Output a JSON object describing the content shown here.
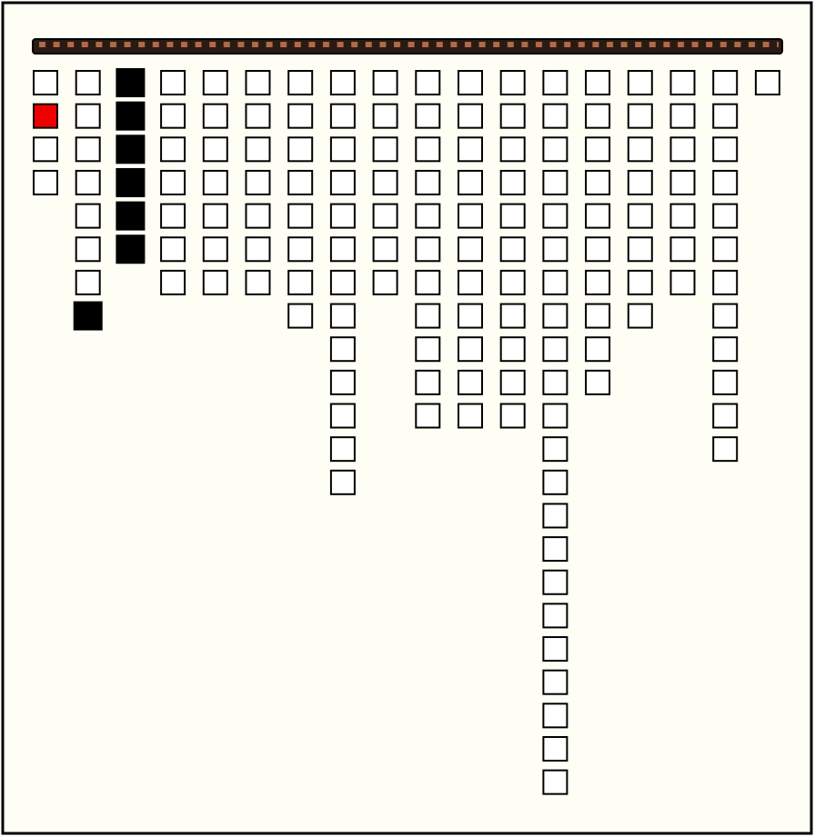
{
  "columns": [
    {
      "cells": [
        "empty",
        "red",
        "empty",
        "empty"
      ]
    },
    {
      "cells": [
        "empty",
        "empty",
        "empty",
        "empty",
        "empty",
        "empty",
        "empty",
        "black"
      ]
    },
    {
      "cells": [
        "black",
        "black",
        "black",
        "black",
        "black",
        "black"
      ]
    },
    {
      "cells": [
        "empty",
        "empty",
        "empty",
        "empty",
        "empty",
        "empty",
        "empty"
      ]
    },
    {
      "cells": [
        "empty",
        "empty",
        "empty",
        "empty",
        "empty",
        "empty",
        "empty"
      ]
    },
    {
      "cells": [
        "empty",
        "empty",
        "empty",
        "empty",
        "empty",
        "empty",
        "empty"
      ]
    },
    {
      "cells": [
        "empty",
        "empty",
        "empty",
        "empty",
        "empty",
        "empty",
        "empty",
        "empty"
      ]
    },
    {
      "cells": [
        "empty",
        "empty",
        "empty",
        "empty",
        "empty",
        "empty",
        "empty",
        "empty",
        "empty",
        "empty",
        "empty",
        "empty",
        "empty"
      ]
    },
    {
      "cells": [
        "empty",
        "empty",
        "empty",
        "empty",
        "empty",
        "empty",
        "empty"
      ]
    },
    {
      "cells": [
        "empty",
        "empty",
        "empty",
        "empty",
        "empty",
        "empty",
        "empty",
        "empty",
        "empty",
        "empty",
        "empty"
      ]
    },
    {
      "cells": [
        "empty",
        "empty",
        "empty",
        "empty",
        "empty",
        "empty",
        "empty",
        "empty",
        "empty",
        "empty",
        "empty"
      ]
    },
    {
      "cells": [
        "empty",
        "empty",
        "empty",
        "empty",
        "empty",
        "empty",
        "empty",
        "empty",
        "empty",
        "empty",
        "empty"
      ]
    },
    {
      "cells": [
        "empty",
        "empty",
        "empty",
        "empty",
        "empty",
        "empty",
        "empty",
        "empty",
        "empty",
        "empty",
        "empty",
        "empty",
        "empty",
        "empty",
        "empty",
        "empty",
        "empty",
        "empty",
        "empty",
        "empty",
        "empty",
        "empty"
      ]
    },
    {
      "cells": [
        "empty",
        "empty",
        "empty",
        "empty",
        "empty",
        "empty",
        "empty",
        "empty",
        "empty",
        "empty"
      ]
    },
    {
      "cells": [
        "empty",
        "empty",
        "empty",
        "empty",
        "empty",
        "empty",
        "empty",
        "empty"
      ]
    },
    {
      "cells": [
        "empty",
        "empty",
        "empty",
        "empty",
        "empty",
        "empty",
        "empty"
      ]
    },
    {
      "cells": [
        "empty",
        "empty",
        "empty",
        "empty",
        "empty",
        "empty",
        "empty",
        "empty",
        "empty",
        "empty",
        "empty",
        "empty"
      ]
    },
    {
      "cells": [
        "empty"
      ]
    }
  ]
}
